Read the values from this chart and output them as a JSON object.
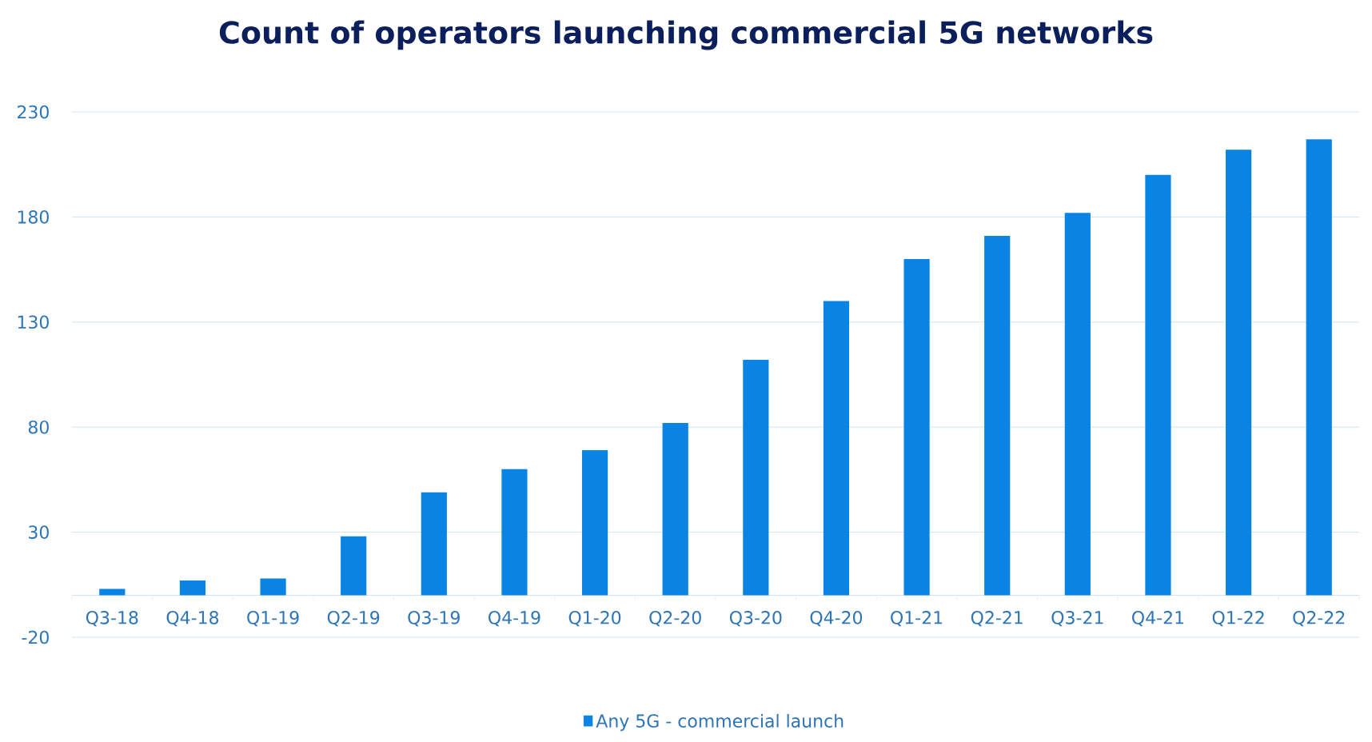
{
  "chart_data": {
    "type": "bar",
    "title": "Count of operators launching commercial 5G networks",
    "categories": [
      "Q3-18",
      "Q4-18",
      "Q1-19",
      "Q2-19",
      "Q3-19",
      "Q4-19",
      "Q1-20",
      "Q2-20",
      "Q3-20",
      "Q4-20",
      "Q1-21",
      "Q2-21",
      "Q3-21",
      "Q4-21",
      "Q1-22",
      "Q2-22"
    ],
    "series": [
      {
        "name": "Any 5G - commercial launch",
        "color": "#0a84e4",
        "values": [
          3,
          7,
          8,
          28,
          49,
          60,
          69,
          82,
          112,
          140,
          160,
          171,
          182,
          200,
          212,
          217
        ]
      }
    ],
    "ylim": [
      -20,
      230
    ],
    "yticks": [
      -20,
      30,
      80,
      130,
      180,
      230
    ],
    "grid": "y",
    "legend": "bottom"
  }
}
